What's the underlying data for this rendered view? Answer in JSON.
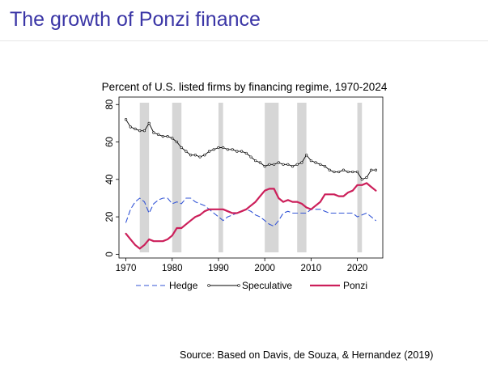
{
  "slide": {
    "title": "The growth of Ponzi finance",
    "source": "Source: Based on Davis, de Souza, & Hernandez (2019)"
  },
  "chart_data": {
    "type": "line",
    "title": "Percent of U.S. listed firms by financing regime, 1970-2024",
    "xlabel": "",
    "ylabel": "",
    "xlim": [
      1970,
      2024
    ],
    "ylim": [
      0,
      80
    ],
    "xticks": [
      1970,
      1980,
      1990,
      2000,
      2010,
      2020
    ],
    "yticks": [
      0,
      20,
      40,
      60,
      80
    ],
    "grid": false,
    "legend_position": "bottom",
    "recession_shading": [
      [
        1973,
        1975
      ],
      [
        1980,
        1982
      ],
      [
        1990,
        1991
      ],
      [
        2000,
        2003
      ],
      [
        2007,
        2009
      ],
      [
        2020,
        2021
      ]
    ],
    "colors": {
      "hedge": "#3355d6",
      "speculative": "#000000",
      "ponzi": "#cc1f5a",
      "shading": "#d6d6d6"
    },
    "x": [
      1970,
      1971,
      1972,
      1973,
      1974,
      1975,
      1976,
      1977,
      1978,
      1979,
      1980,
      1981,
      1982,
      1983,
      1984,
      1985,
      1986,
      1987,
      1988,
      1989,
      1990,
      1991,
      1992,
      1993,
      1994,
      1995,
      1996,
      1997,
      1998,
      1999,
      2000,
      2001,
      2002,
      2003,
      2004,
      2005,
      2006,
      2007,
      2008,
      2009,
      2010,
      2011,
      2012,
      2013,
      2014,
      2015,
      2016,
      2017,
      2018,
      2019,
      2020,
      2021,
      2022,
      2023,
      2024
    ],
    "series": [
      {
        "name": "Hedge",
        "style": "dashed",
        "values": [
          17,
          24,
          28,
          30,
          28,
          22,
          27,
          29,
          30,
          30,
          27,
          28,
          27,
          30,
          30,
          28,
          27,
          26,
          24,
          22,
          20,
          18,
          20,
          21,
          22,
          23,
          24,
          23,
          21,
          20,
          18,
          16,
          15,
          18,
          22,
          23,
          22,
          22,
          22,
          22,
          24,
          24,
          24,
          23,
          22,
          22,
          22,
          22,
          22,
          22,
          20,
          21,
          22,
          20,
          18
        ]
      },
      {
        "name": "Speculative",
        "style": "solid-marker",
        "values": [
          72,
          68,
          67,
          66,
          66,
          70,
          65,
          64,
          63,
          63,
          62,
          60,
          57,
          55,
          53,
          53,
          52,
          53,
          55,
          56,
          57,
          57,
          56,
          56,
          55,
          55,
          54,
          52,
          50,
          49,
          47,
          48,
          48,
          49,
          48,
          48,
          47,
          48,
          49,
          53,
          50,
          49,
          48,
          47,
          45,
          44,
          44,
          45,
          44,
          44,
          44,
          40,
          41,
          45,
          45
        ]
      },
      {
        "name": "Ponzi",
        "style": "solid-thick",
        "values": [
          11,
          8,
          5,
          3,
          5,
          8,
          7,
          7,
          7,
          8,
          10,
          14,
          14,
          16,
          18,
          20,
          21,
          23,
          24,
          24,
          24,
          24,
          23,
          22,
          22,
          23,
          24,
          26,
          28,
          31,
          34,
          35,
          35,
          30,
          28,
          29,
          28,
          28,
          27,
          25,
          24,
          26,
          28,
          32,
          32,
          32,
          31,
          31,
          33,
          34,
          37,
          37,
          38,
          36,
          34
        ]
      }
    ]
  }
}
